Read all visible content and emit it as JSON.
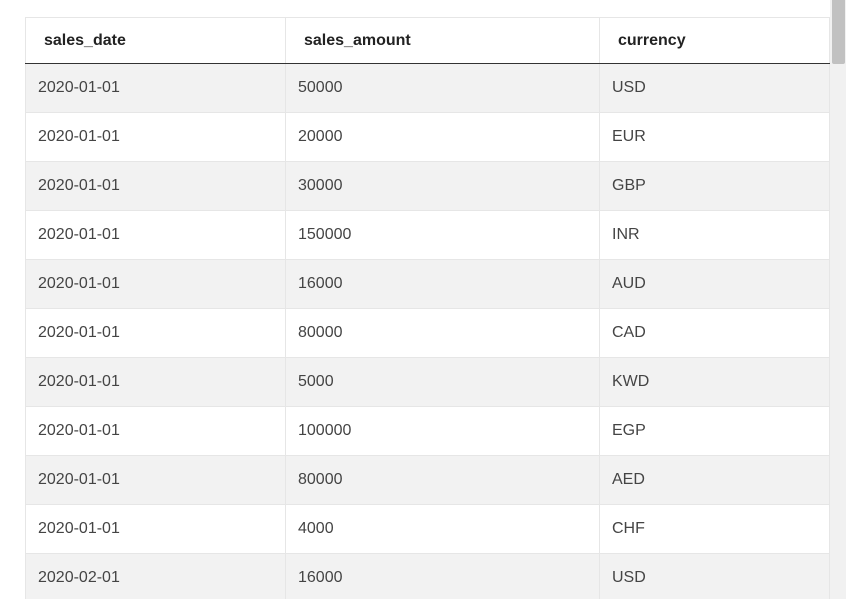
{
  "table": {
    "columns": [
      "sales_date",
      "sales_amount",
      "currency"
    ],
    "rows": [
      [
        "2020-01-01",
        "50000",
        "USD"
      ],
      [
        "2020-01-01",
        "20000",
        "EUR"
      ],
      [
        "2020-01-01",
        "30000",
        "GBP"
      ],
      [
        "2020-01-01",
        "150000",
        "INR"
      ],
      [
        "2020-01-01",
        "16000",
        "AUD"
      ],
      [
        "2020-01-01",
        "80000",
        "CAD"
      ],
      [
        "2020-01-01",
        "5000",
        "KWD"
      ],
      [
        "2020-01-01",
        "100000",
        "EGP"
      ],
      [
        "2020-01-01",
        "80000",
        "AED"
      ],
      [
        "2020-01-01",
        "4000",
        "CHF"
      ],
      [
        "2020-02-01",
        "16000",
        "USD"
      ]
    ]
  }
}
